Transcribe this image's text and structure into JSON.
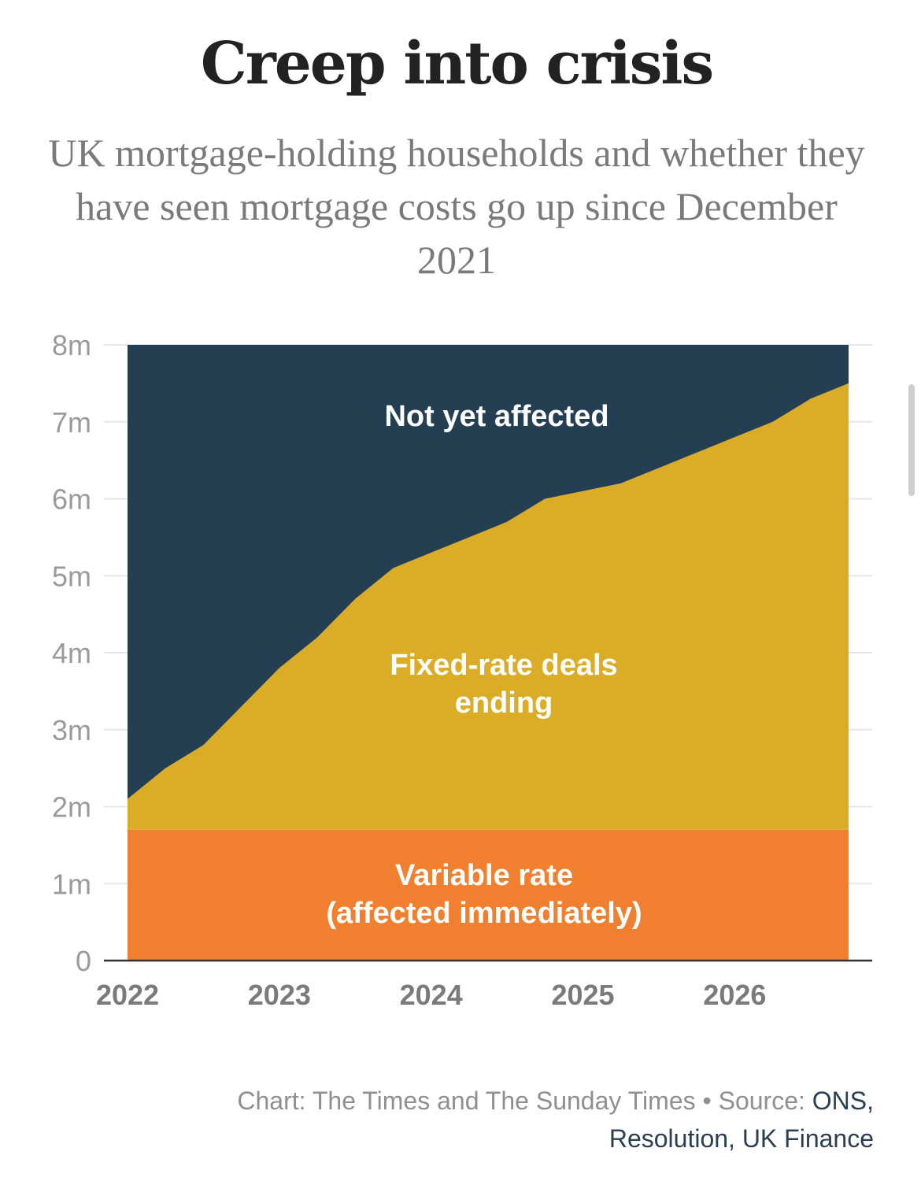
{
  "chart_data": {
    "type": "area",
    "title": "Creep into crisis",
    "subtitle": "UK mortgage-holding households and whether they have seen mortgage costs go up since December 2021",
    "x": [
      2022.0,
      2022.25,
      2022.5,
      2022.75,
      2023.0,
      2023.25,
      2023.5,
      2023.75,
      2024.0,
      2024.25,
      2024.5,
      2024.75,
      2025.0,
      2025.25,
      2025.5,
      2025.75,
      2026.0,
      2026.25,
      2026.5,
      2026.75
    ],
    "series": [
      {
        "name": "Variable rate (affected immediately)",
        "label_lines": [
          "Variable rate",
          "(affected immediately)"
        ],
        "color": "#f08030",
        "values": [
          1.7,
          1.7,
          1.7,
          1.7,
          1.7,
          1.7,
          1.7,
          1.7,
          1.7,
          1.7,
          1.7,
          1.7,
          1.7,
          1.7,
          1.7,
          1.7,
          1.7,
          1.7,
          1.7,
          1.7
        ]
      },
      {
        "name": "Fixed-rate deals ending",
        "label_lines": [
          "Fixed-rate deals",
          "ending"
        ],
        "color": "#dbad26",
        "values": [
          0.4,
          0.8,
          1.1,
          1.6,
          2.1,
          2.5,
          3.0,
          3.4,
          3.6,
          3.8,
          4.0,
          4.3,
          4.4,
          4.5,
          4.7,
          4.9,
          5.1,
          5.3,
          5.6,
          5.8
        ]
      },
      {
        "name": "Not yet affected",
        "label_lines": [
          "Not yet affected"
        ],
        "color": "#243f52",
        "values": [
          5.9,
          5.5,
          5.2,
          4.7,
          4.2,
          3.8,
          3.3,
          2.9,
          2.7,
          2.5,
          2.3,
          2.0,
          1.9,
          1.8,
          1.6,
          1.4,
          1.2,
          1.0,
          0.7,
          0.5
        ]
      }
    ],
    "total": 8,
    "xlim": [
      2022.0,
      2026.75
    ],
    "ylim": [
      0,
      8
    ],
    "y_ticks": [
      {
        "value": 0,
        "label": "0"
      },
      {
        "value": 1,
        "label": "1m"
      },
      {
        "value": 2,
        "label": "2m"
      },
      {
        "value": 3,
        "label": "3m"
      },
      {
        "value": 4,
        "label": "4m"
      },
      {
        "value": 5,
        "label": "5m"
      },
      {
        "value": 6,
        "label": "6m"
      },
      {
        "value": 7,
        "label": "7m"
      },
      {
        "value": 8,
        "label": "8m"
      }
    ],
    "x_ticks": [
      {
        "value": 2022,
        "label": "2022"
      },
      {
        "value": 2023,
        "label": "2023"
      },
      {
        "value": 2024,
        "label": "2024"
      },
      {
        "value": 2025,
        "label": "2025"
      },
      {
        "value": 2026,
        "label": "2026"
      }
    ],
    "grid": true,
    "xlabel": "",
    "ylabel": ""
  },
  "footer": {
    "credit": "Chart: The Times and The Sunday Times • Source: ",
    "source": "ONS, Resolution, UK Finance"
  },
  "colors": {
    "grid": "#e6e6e6",
    "axis": "#333333"
  }
}
